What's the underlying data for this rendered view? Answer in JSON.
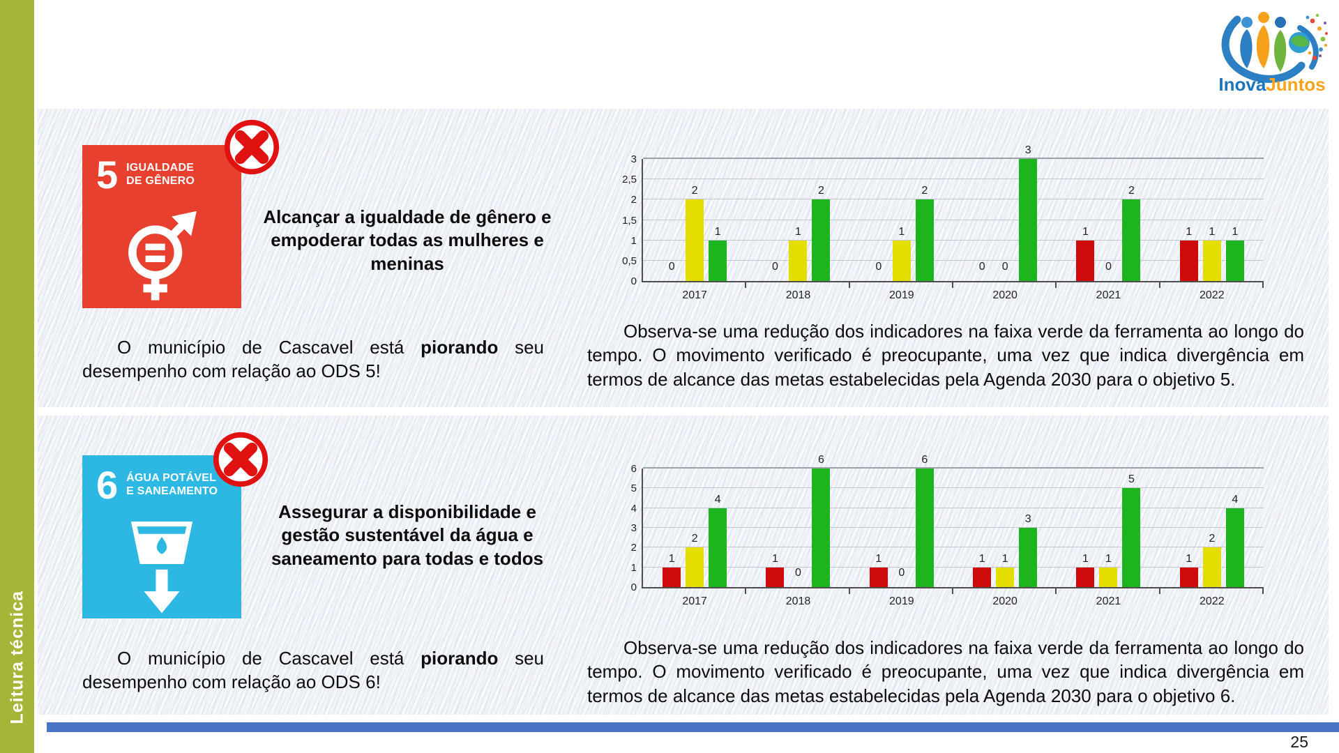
{
  "sidebar": {
    "label": "Leitura técnica",
    "color": "#a6b437"
  },
  "logo": {
    "inova": "Inova",
    "juntos": "Juntos"
  },
  "page_number": "25",
  "footer_bar_color": "#4a74c4",
  "panels": [
    {
      "sdg": {
        "number": "5",
        "title_lines": [
          "IGUALDADE",
          "DE GÊNERO"
        ],
        "color": "#e8402e",
        "status_icon": "crossed-out-circle"
      },
      "goal_text": "Alcançar a igualdade de gênero e empoderar todas as mulheres e meninas",
      "status_pre": "O município de Cascavel está ",
      "status_bold": "piorando",
      "status_post": " seu desempenho com relação ao ODS 5!",
      "observation": "Observa-se uma redução dos indicadores na faixa verde da ferramenta ao longo do tempo. O movimento verificado é preocupante, uma vez que indica divergência em termos de alcance das metas estabelecidas pela Agenda 2030 para o objetivo 5."
    },
    {
      "sdg": {
        "number": "6",
        "title_lines": [
          "ÁGUA POTÁVEL",
          "E SANEAMENTO"
        ],
        "color": "#2cb8e3",
        "status_icon": "crossed-out-circle"
      },
      "goal_text": "Assegurar a disponibilidade e gestão sustentável da água e saneamento para todas e todos",
      "status_pre": "O município de Cascavel está ",
      "status_bold": "piorando",
      "status_post": " seu desempenho com relação ao ODS 6!",
      "observation": "Observa-se uma redução dos indicadores na faixa verde da ferramenta ao longo do tempo. O movimento verificado é preocupante, uma vez que indica divergência em termos de alcance das metas estabelecidas pela Agenda 2030 para o objetivo 6."
    }
  ],
  "chart_data": [
    {
      "type": "bar",
      "title": "",
      "categories": [
        "2017",
        "2018",
        "2019",
        "2020",
        "2021",
        "2022"
      ],
      "series": [
        {
          "name": "vermelho",
          "color": "#cf0a0a",
          "values": [
            0,
            0,
            0,
            0,
            1,
            1
          ]
        },
        {
          "name": "amarelo",
          "color": "#e3dd00",
          "values": [
            2,
            1,
            1,
            0,
            0,
            1
          ]
        },
        {
          "name": "verde",
          "color": "#1eb41e",
          "values": [
            1,
            2,
            2,
            3,
            2,
            1
          ]
        }
      ],
      "ylim": [
        0,
        3
      ],
      "ystep": 0.5,
      "yticks": [
        "0",
        "0,5",
        "1",
        "1,5",
        "2",
        "2,5",
        "3"
      ],
      "grid": "horizontal",
      "legend": "none",
      "value_labels": true
    },
    {
      "type": "bar",
      "title": "",
      "categories": [
        "2017",
        "2018",
        "2019",
        "2020",
        "2021",
        "2022"
      ],
      "series": [
        {
          "name": "vermelho",
          "color": "#cf0a0a",
          "values": [
            1,
            1,
            1,
            1,
            1,
            1
          ]
        },
        {
          "name": "amarelo",
          "color": "#e3dd00",
          "values": [
            2,
            0,
            0,
            1,
            1,
            2
          ]
        },
        {
          "name": "verde",
          "color": "#1eb41e",
          "values": [
            4,
            6,
            6,
            3,
            5,
            4
          ]
        }
      ],
      "ylim": [
        0,
        6
      ],
      "ystep": 1,
      "yticks": [
        "0",
        "1",
        "2",
        "3",
        "4",
        "5",
        "6"
      ],
      "grid": "horizontal",
      "legend": "none",
      "value_labels": true
    }
  ]
}
